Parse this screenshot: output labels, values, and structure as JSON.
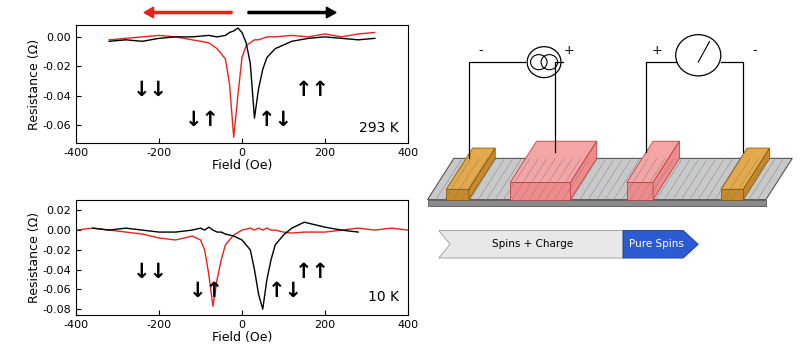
{
  "chart_data": [
    {
      "type": "line",
      "x_label": "Field (Oe)",
      "y_label": "Resistance (Ω)",
      "x": [
        -320,
        -280,
        -240,
        -200,
        -160,
        -120,
        -80,
        -60,
        -40,
        -30,
        -20,
        -10,
        0,
        10,
        20,
        30,
        40,
        50,
        60,
        80,
        120,
        160,
        200,
        240,
        280,
        320
      ],
      "series": [
        {
          "color": "#e8231b",
          "values": [
            -0.002,
            -0.001,
            0.0,
            0.001,
            0.0,
            -0.002,
            -0.004,
            -0.008,
            -0.015,
            -0.032,
            -0.068,
            -0.04,
            -0.014,
            -0.006,
            -0.004,
            -0.002,
            -0.002,
            -0.001,
            0.0,
            0.0,
            0.001,
            0.0,
            0.002,
            0.0,
            0.002,
            0.003
          ]
        },
        {
          "color": "#000000",
          "values": [
            -0.003,
            -0.002,
            -0.003,
            -0.001,
            0.0,
            0.0,
            0.001,
            0.0,
            0.001,
            0.003,
            0.004,
            0.006,
            0.003,
            -0.004,
            -0.018,
            -0.055,
            -0.035,
            -0.022,
            -0.014,
            -0.008,
            -0.003,
            -0.001,
            0.0,
            -0.001,
            -0.002,
            -0.001
          ]
        }
      ],
      "xlim": [
        -400,
        400
      ],
      "xticks": [
        -400,
        -200,
        0,
        200,
        400
      ],
      "ylim": [
        -0.072,
        0.008
      ],
      "yticks": [
        {
          "value": -0.06,
          "label": "-0.06"
        },
        {
          "value": -0.04,
          "label": "-0.04"
        },
        {
          "value": -0.02,
          "label": "-0.02"
        },
        {
          "value": 0,
          "label": "0.00"
        }
      ],
      "annotations": [
        {
          "text": "↓↓",
          "x": -220,
          "y": -0.036
        },
        {
          "text": "↑↑",
          "x": 170,
          "y": -0.036
        },
        {
          "text": "↓↑",
          "x": -95,
          "y": -0.056
        },
        {
          "text": "↑↓",
          "x": 80,
          "y": -0.056
        },
        {
          "text": "293 K",
          "x": 330,
          "y": -0.062
        }
      ]
    },
    {
      "type": "line",
      "x_label": "Field (Oe)",
      "y_label": "Resistance (Ω)",
      "x": [
        -400,
        -360,
        -320,
        -280,
        -240,
        -200,
        -160,
        -120,
        -100,
        -90,
        -80,
        -70,
        -60,
        -50,
        -40,
        -20,
        0,
        20,
        30,
        40,
        50,
        60,
        70,
        80,
        100,
        120,
        150,
        200,
        240,
        280,
        320,
        360,
        400
      ],
      "series": [
        {
          "color": "#e8231b",
          "values": [
            0.0,
            0.002,
            0.0,
            -0.002,
            -0.004,
            -0.008,
            -0.01,
            -0.006,
            -0.01,
            -0.02,
            -0.045,
            -0.077,
            -0.05,
            -0.03,
            -0.015,
            -0.005,
            0.0,
            0.002,
            0.0,
            0.002,
            0.0,
            0.002,
            0.0,
            0.0,
            -0.002,
            -0.003,
            -0.002,
            -0.002,
            0.0,
            0.002,
            0.0,
            0.002,
            0.0
          ]
        },
        {
          "color": "#000000",
          "values": [
            null,
            0.002,
            0.0,
            0.002,
            0.0,
            -0.002,
            -0.002,
            0.0,
            0.002,
            0.0,
            0.003,
            0.0,
            -0.002,
            -0.002,
            -0.004,
            -0.006,
            -0.01,
            -0.02,
            -0.04,
            -0.065,
            -0.08,
            -0.05,
            -0.03,
            -0.015,
            -0.005,
            0.002,
            0.008,
            0.003,
            0.0,
            -0.002,
            null,
            null,
            null
          ]
        }
      ],
      "xlim": [
        -400,
        400
      ],
      "xticks": [
        -400,
        -200,
        0,
        200,
        400
      ],
      "ylim": [
        -0.086,
        0.03
      ],
      "yticks": [
        {
          "value": -0.08,
          "label": "-0.08"
        },
        {
          "value": -0.06,
          "label": "-0.06"
        },
        {
          "value": -0.04,
          "label": "-0.04"
        },
        {
          "value": -0.02,
          "label": "-0.02"
        },
        {
          "value": 0,
          "label": "0.00"
        },
        {
          "value": 0.02,
          "label": "0.02"
        }
      ],
      "annotations": [
        {
          "text": "↓↓",
          "x": -220,
          "y": -0.042
        },
        {
          "text": "↑↑",
          "x": 170,
          "y": -0.042
        },
        {
          "text": "↓↑",
          "x": -85,
          "y": -0.062
        },
        {
          "text": "↑↓",
          "x": 105,
          "y": -0.062
        },
        {
          "text": "10 K",
          "x": 340,
          "y": -0.068
        }
      ]
    }
  ],
  "diagram": {
    "current_source": {
      "terminals": [
        "-",
        "+"
      ]
    },
    "voltmeter": {
      "terminals": [
        "+",
        "-"
      ]
    },
    "regions": [
      "Spins + Charge",
      "Pure Spins"
    ]
  }
}
